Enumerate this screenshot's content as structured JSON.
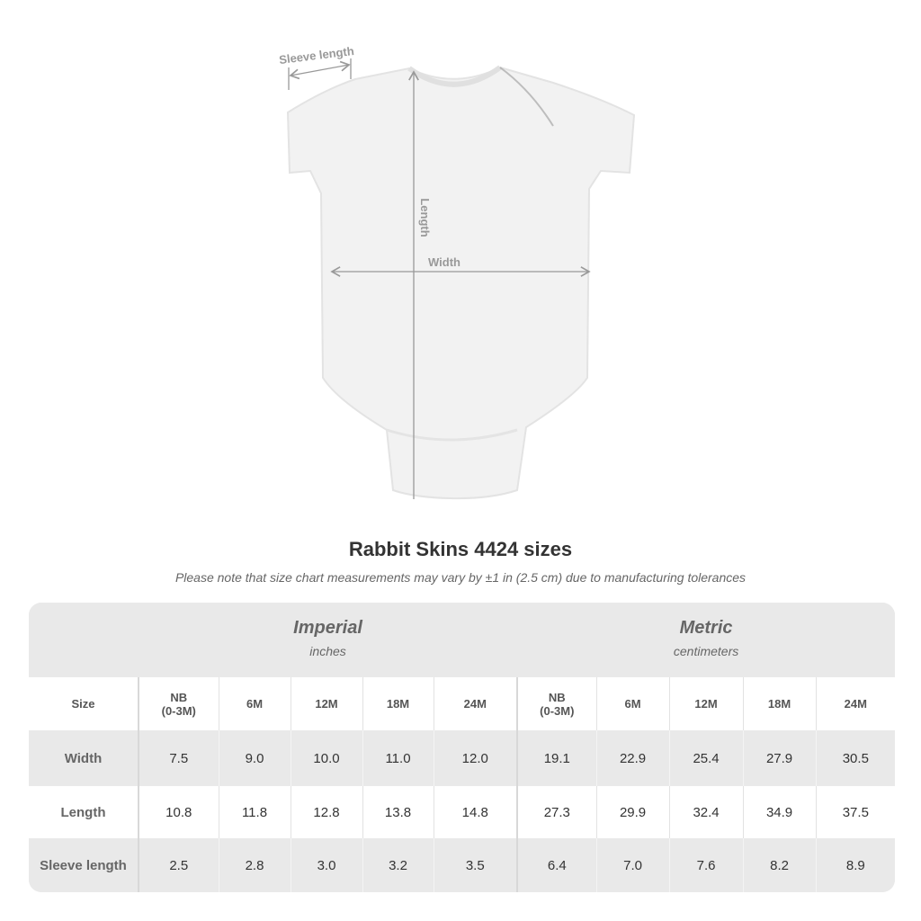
{
  "diagram": {
    "labels": {
      "sleeve": "Sleeve length",
      "length": "Length",
      "width": "Width"
    }
  },
  "title": "Rabbit Skins 4424 sizes",
  "note": "Please note that size chart measurements may vary by ±1 in (2.5 cm) due to manufacturing tolerances",
  "table": {
    "imperial": {
      "label": "Imperial",
      "unit": "inches"
    },
    "metric": {
      "label": "Metric",
      "unit": "centimeters"
    },
    "size_label": "Size",
    "sizes": [
      "NB\n(0-3M)",
      "6M",
      "12M",
      "18M",
      "24M"
    ],
    "rows": [
      {
        "label": "Width",
        "imperial": [
          "7.5",
          "9.0",
          "10.0",
          "11.0",
          "12.0"
        ],
        "metric": [
          "19.1",
          "22.9",
          "25.4",
          "27.9",
          "30.5"
        ]
      },
      {
        "label": "Length",
        "imperial": [
          "10.8",
          "11.8",
          "12.8",
          "13.8",
          "14.8"
        ],
        "metric": [
          "27.3",
          "29.9",
          "32.4",
          "34.9",
          "37.5"
        ]
      },
      {
        "label": "Sleeve length",
        "imperial": [
          "2.5",
          "2.8",
          "3.0",
          "3.2",
          "3.5"
        ],
        "metric": [
          "6.4",
          "7.0",
          "7.6",
          "8.2",
          "8.9"
        ]
      }
    ]
  }
}
